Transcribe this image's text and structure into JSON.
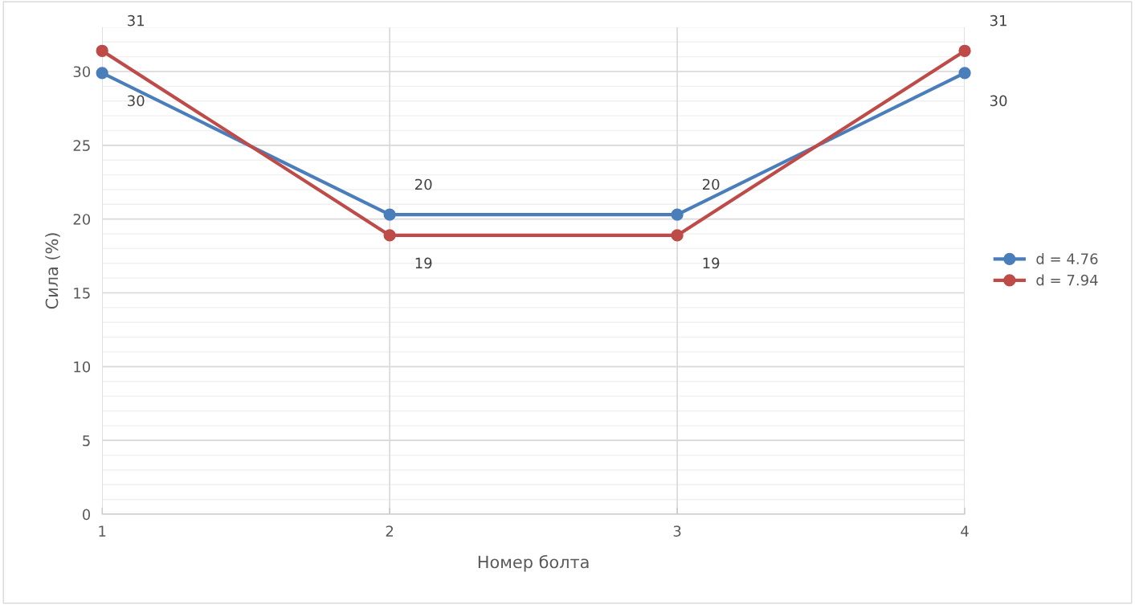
{
  "chart_data": {
    "type": "line",
    "xlabel": "Номер болта",
    "ylabel": "Сила (%)",
    "x": [
      1,
      2,
      3,
      4
    ],
    "xlim": [
      1,
      4
    ],
    "xticks": [
      1,
      2,
      3,
      4
    ],
    "ylim": [
      0,
      33
    ],
    "yticks": [
      0,
      5,
      10,
      15,
      20,
      25,
      30
    ],
    "series": [
      {
        "name": "d = 4.76",
        "color": "#4a7ebb",
        "values": [
          29.9,
          20.3,
          20.3,
          29.9
        ],
        "value_labels": [
          "30",
          "20",
          "20",
          "30"
        ]
      },
      {
        "name": "d = 7.94",
        "color": "#be4b48",
        "values": [
          31.4,
          18.9,
          18.9,
          31.4
        ],
        "value_labels": [
          "31",
          "19",
          "19",
          "31"
        ]
      }
    ],
    "grid": true,
    "legend": "right",
    "marker": "circle",
    "line_style": "solid"
  }
}
